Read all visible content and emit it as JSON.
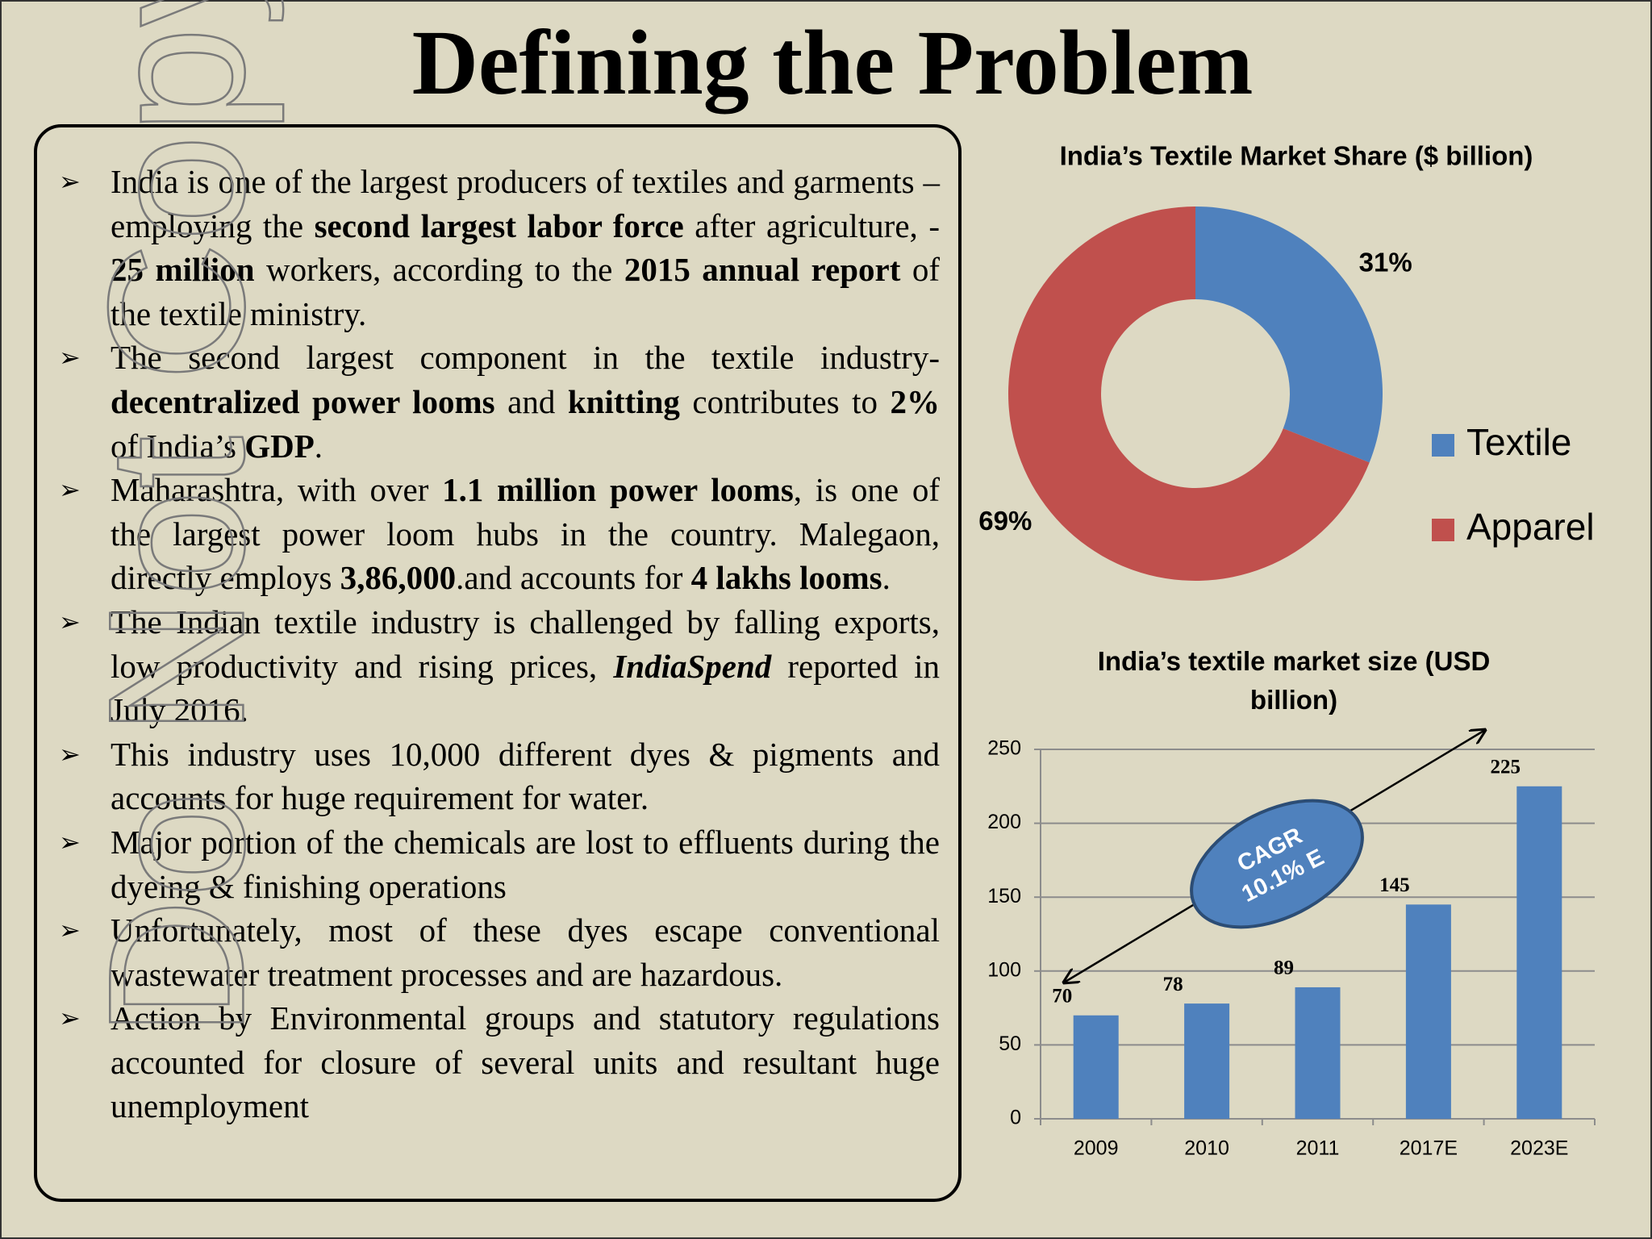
{
  "title": "Defining the Problem",
  "watermark": "Do Not Copy",
  "bullets": [
    [
      {
        "text": "India is one of the largest producers of textiles and garments – employing the "
      },
      {
        "text": "second largest labor force",
        "bold": true
      },
      {
        "text": " after agriculture, - "
      },
      {
        "text": "25 million",
        "bold": true
      },
      {
        "text": " workers, according to the "
      },
      {
        "text": "2015 annual report",
        "bold": true
      },
      {
        "text": " of the textile ministry."
      }
    ],
    [
      {
        "text": "The second largest component in the textile industry- "
      },
      {
        "text": "decentralized power looms",
        "bold": true
      },
      {
        "text": " and "
      },
      {
        "text": "knitting",
        "bold": true
      },
      {
        "text": " contributes to "
      },
      {
        "text": "2%",
        "bold": true
      },
      {
        "text": " of India’s "
      },
      {
        "text": "GDP",
        "bold": true
      },
      {
        "text": "."
      }
    ],
    [
      {
        "text": "Maharashtra, with over "
      },
      {
        "text": "1.1 million power looms",
        "bold": true
      },
      {
        "text": ", is one of the largest power loom hubs in the country. Malegaon, directly employs "
      },
      {
        "text": "3,86,000",
        "bold": true
      },
      {
        "text": ".and accounts for "
      },
      {
        "text": "4 lakhs looms",
        "bold": true
      },
      {
        "text": "."
      }
    ],
    [
      {
        "text": "The Indian textile industry is challenged by falling exports, low productivity and rising prices, "
      },
      {
        "text": "IndiaSpend",
        "bold": true,
        "italic": true
      },
      {
        "text": " reported in July 2016."
      }
    ],
    [
      {
        "text": "This industry uses 10,000 different dyes & pigments and accounts for huge requirement for water."
      }
    ],
    [
      {
        "text": "Major portion of the chemicals are lost to effluents during the dyeing & finishing operations"
      }
    ],
    [
      {
        "text": "Unfortunately, most of these dyes escape conventional wastewater treatment processes and are hazardous."
      }
    ],
    [
      {
        "text": "Action by Environmental groups and statutory regulations accounted for closure of several units and resultant huge unemployment"
      }
    ]
  ],
  "chart_data": [
    {
      "type": "pie",
      "title": "India’s Textile Market Share ($ billion)",
      "categories": [
        "Textile",
        "Apparel"
      ],
      "values": [
        31,
        69
      ],
      "value_labels": [
        "31%",
        "69%"
      ],
      "colors": [
        "#4f81bd",
        "#c0504d"
      ],
      "legend": "right"
    },
    {
      "type": "bar",
      "title": "India’s textile market size (USD billion)",
      "categories": [
        "2009",
        "2010",
        "2011",
        "2017E",
        "2023E"
      ],
      "values": [
        70,
        78,
        89,
        145,
        225
      ],
      "color": "#4f81bd",
      "ylim": [
        0,
        250
      ],
      "yticks": [
        0,
        50,
        100,
        150,
        200,
        250
      ],
      "grid": true,
      "annotation": [
        "CAGR",
        "10.1% E"
      ]
    }
  ]
}
